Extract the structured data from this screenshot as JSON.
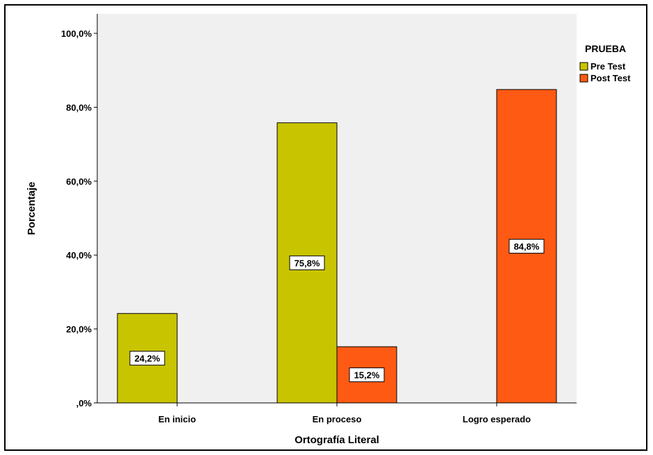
{
  "chart_data": {
    "type": "bar",
    "title": "",
    "xlabel": "Ortografía Literal",
    "ylabel": "Porcentaje",
    "categories": [
      "En inicio",
      "En proceso",
      "Logro esperado"
    ],
    "ylim": [
      0,
      100
    ],
    "yticks": [
      0,
      20,
      40,
      60,
      80,
      100
    ],
    "ytick_labels": [
      ",0%",
      "20,0%",
      "40,0%",
      "60,0%",
      "80,0%",
      "100,0%"
    ],
    "legend_title": "PRUEBA",
    "legend_position": "right",
    "grid": false,
    "series": [
      {
        "name": "Pre Test",
        "color": "#c8c400",
        "values": [
          24.2,
          75.8,
          null
        ],
        "labels": [
          "24,2%",
          "75,8%",
          ""
        ]
      },
      {
        "name": "Post Test",
        "color": "#ff5a14",
        "values": [
          null,
          15.2,
          84.8
        ],
        "labels": [
          "",
          "15,2%",
          "84,8%"
        ]
      }
    ],
    "plot_background": "#f0f0f0"
  }
}
